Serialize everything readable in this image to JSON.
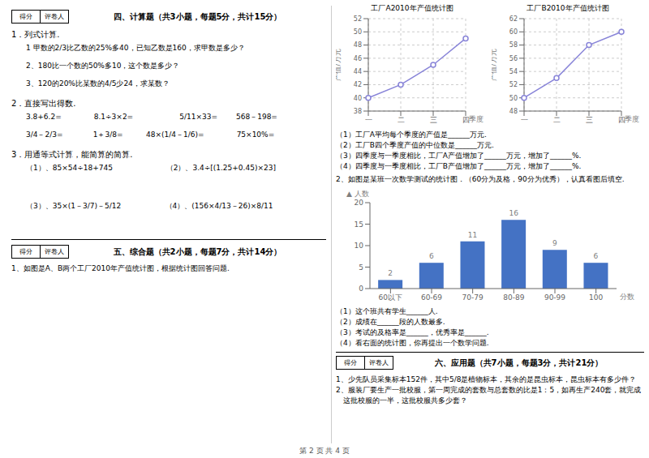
{
  "chart_data": [
    {
      "type": "line",
      "title": "工厂A2010年产值统计图",
      "ylabel": "产值/万元",
      "xlabel": "季度",
      "categories": [
        "一",
        "二",
        "三",
        "四"
      ],
      "values": [
        40,
        42,
        45,
        49
      ],
      "ylim": [
        38,
        52
      ],
      "yticks": [
        38,
        40,
        42,
        44,
        46,
        48,
        50,
        52
      ],
      "grid": true,
      "marker": "o"
    },
    {
      "type": "line",
      "title": "工厂B2010年产值统计图",
      "ylabel": "产值/万元",
      "xlabel": "季度",
      "categories": [
        "一",
        "二",
        "三",
        "四"
      ],
      "values": [
        50,
        53,
        58,
        60
      ],
      "ylim": [
        48,
        62
      ],
      "yticks": [
        48,
        50,
        52,
        54,
        56,
        58,
        60,
        62
      ],
      "grid": true,
      "marker": "o"
    },
    {
      "type": "bar",
      "ylabel": "▲ 人数",
      "xlabel": "分数",
      "categories": [
        "60以下",
        "60-69",
        "70-79",
        "80-89",
        "90-99",
        "100"
      ],
      "values": [
        2,
        6,
        11,
        16,
        9,
        6
      ],
      "ylim": [
        0,
        20
      ],
      "yticks": [
        0,
        5,
        10,
        15,
        20
      ],
      "color": "#4472c4",
      "grid": false,
      "data_labels": true
    }
  ],
  "annotations": {
    "score_box": [
      "得分",
      "评卷人"
    ],
    "section4_title": "四、计算题（共3小题，每题5分，共计15分）",
    "section4": [
      {
        "heading": "1．列式计算.",
        "items": [
          "1 甲数的2/3比乙数的25%多40，已知乙数是160，求甲数是多少？",
          "2、180比一个数的50%多10，这个数是多少？",
          "3、120的20%比某数的4/5少24，求某数？"
        ]
      },
      {
        "heading": "2．直接写出得数.",
        "items": [
          "3.8+6.2=              8.1÷3×2=                    5/11×33=        568－198=",
          "3/4－2/3=             1＋3/8=          48×(1/4－1/6)=              75×10%="
        ]
      },
      {
        "heading": "3．用通等式计算，能简算的简算.",
        "items": [
          "（1）、85×54÷18+745                       （2）、3.4÷[(1.25+0.45)×23]",
          "（3）、35×(1－3/7)－5/12                   （4）、(156×4/13－26)×8/11"
        ]
      }
    ],
    "section5_title": "五、综合题（共2小题，每题7分，共计14分）",
    "section5_intro": "1、如图是A、B两个工厂2010年产值统计图，根据统计图回答问题.",
    "chart_questions": [
      "（1）工厂A平均每个季度的产值是______万元.",
      "（2）工厂B四个季度产值的中位数是______万元.",
      "（3）四季度与一季度相比，工厂A产值增加了______万元，增加了______%.",
      "（4）四季度与一季度相比，工厂B产值增加了______万元，增加了______%."
    ],
    "q2_intro": "2、如图是某班一次数学测试的统计图．（60分为及格，90分为优秀），认真看图后填空.",
    "bar_questions": [
      "（1）这个班共有学生______人.",
      "（2）成绩在______段的人数最多.",
      "（3）考试的及格率是______，优秀率是______.",
      "（4）看右面的统计图，你再提出一个数学问题."
    ],
    "section6_title": "六、应用题（共7小题，每题3分，共计21分）",
    "section6_lines": [
      "1、少先队员采集标本152件，其中5/8是植物标本，其余的是昆虫标本，昆虫标本有多少件？",
      "2、服装厂要生产一批校服，第一周完成的套数与总套数的比是1：5，如再生产240套，就完成",
      "　这批校服的一半，这批校服共多少套？"
    ],
    "page_number": "第 2 页 共 4 页"
  }
}
